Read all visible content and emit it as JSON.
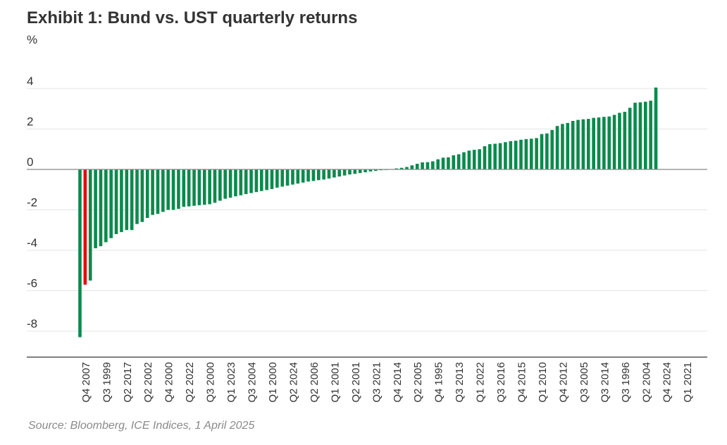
{
  "title": "Exhibit 1: Bund vs. UST quarterly returns",
  "source": "Source: Bloomberg, ICE Indices, 1 April 2025",
  "colors": {
    "positive": "#0a8a4c",
    "negative": "#0a8a4c",
    "highlight": "#e30b0b",
    "grid": "#e4e4e4",
    "axis": "#555555"
  },
  "chart_data": {
    "type": "bar",
    "ylabel": "%",
    "ylim": [
      -9.3,
      4.6
    ],
    "yticks": [
      4,
      2,
      0,
      -2,
      -4,
      -6,
      -8
    ],
    "highlight_index": 1,
    "xtick_labels": [
      "Q4 2007",
      "Q3 1999",
      "Q2 2017",
      "Q2 2002",
      "Q4 2000",
      "Q2 2022",
      "Q3 2000",
      "Q1 2023",
      "Q3 2004",
      "Q1 2000",
      "Q2 2024",
      "Q2 2006",
      "Q1 2001",
      "Q2 2001",
      "Q3 2021",
      "Q4 2014",
      "Q2 2005",
      "Q4 1995",
      "Q3 2013",
      "Q1 2022",
      "Q3 2016",
      "Q4 2015",
      "Q1 2010",
      "Q4 2012",
      "Q3 2005",
      "Q3 2014",
      "Q3 1996",
      "Q2 2004",
      "Q4 2024",
      "Q1 2021"
    ],
    "values": [
      -8.3,
      -5.7,
      -5.5,
      -3.9,
      -3.8,
      -3.6,
      -3.4,
      -3.2,
      -3.1,
      -3.0,
      -3.0,
      -2.7,
      -2.6,
      -2.4,
      -2.25,
      -2.2,
      -2.1,
      -2.0,
      -2.0,
      -1.95,
      -1.85,
      -1.83,
      -1.8,
      -1.77,
      -1.75,
      -1.72,
      -1.65,
      -1.55,
      -1.45,
      -1.4,
      -1.33,
      -1.28,
      -1.22,
      -1.17,
      -1.12,
      -1.07,
      -1.02,
      -0.97,
      -0.9,
      -0.85,
      -0.8,
      -0.75,
      -0.7,
      -0.65,
      -0.6,
      -0.57,
      -0.53,
      -0.5,
      -0.45,
      -0.4,
      -0.35,
      -0.3,
      -0.25,
      -0.22,
      -0.18,
      -0.14,
      -0.1,
      -0.07,
      -0.04,
      -0.02,
      0.02,
      0.05,
      0.08,
      0.12,
      0.2,
      0.28,
      0.35,
      0.36,
      0.4,
      0.5,
      0.58,
      0.6,
      0.7,
      0.75,
      0.85,
      0.93,
      0.97,
      1.0,
      1.15,
      1.25,
      1.27,
      1.3,
      1.35,
      1.4,
      1.42,
      1.47,
      1.5,
      1.52,
      1.55,
      1.75,
      1.78,
      1.95,
      2.15,
      2.25,
      2.3,
      2.4,
      2.45,
      2.48,
      2.5,
      2.55,
      2.57,
      2.6,
      2.62,
      2.7,
      2.8,
      2.85,
      3.05,
      3.3,
      3.32,
      3.35,
      3.4,
      4.05
    ]
  }
}
